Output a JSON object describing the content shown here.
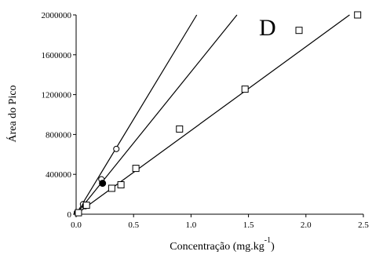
{
  "chart_data": {
    "type": "scatter",
    "title": "",
    "panel_label": "D",
    "xlabel": "Concentração (mg.kg",
    "xlabel_superscript": "-1",
    "xlabel_suffix": ")",
    "ylabel": "Área do Pico",
    "xlim": [
      0,
      2.5
    ],
    "ylim": [
      0,
      2000000
    ],
    "x_ticks": [
      "0.0",
      "0.5",
      "1.0",
      "1.5",
      "2.0",
      "2.5"
    ],
    "x_tick_values": [
      0,
      0.5,
      1.0,
      1.5,
      2.0,
      2.5
    ],
    "y_ticks": [
      "0",
      "400000",
      "800000",
      "1200000",
      "1600000",
      "2000000"
    ],
    "y_tick_values": [
      0,
      400000,
      800000,
      1200000,
      1600000,
      2000000
    ],
    "grid": false,
    "series": [
      {
        "marker": "circle-open",
        "points": [
          [
            0.02,
            15000
          ],
          [
            0.06,
            100000
          ],
          [
            0.22,
            350000
          ],
          [
            0.35,
            655000
          ]
        ],
        "fit_line": [
          [
            0,
            0
          ],
          [
            1.05,
            2000000
          ]
        ]
      },
      {
        "marker": "circle-filled",
        "points": [
          [
            0.01,
            15000
          ],
          [
            0.08,
            85000
          ],
          [
            0.23,
            310000
          ]
        ],
        "fit_line": [
          [
            0,
            0
          ],
          [
            1.4,
            2000000
          ]
        ]
      },
      {
        "marker": "square-open",
        "points": [
          [
            0.02,
            15000
          ],
          [
            0.09,
            90000
          ],
          [
            0.31,
            260000
          ],
          [
            0.39,
            295000
          ],
          [
            0.52,
            460000
          ],
          [
            0.9,
            855000
          ],
          [
            1.47,
            1255000
          ],
          [
            1.94,
            1845000
          ],
          [
            2.45,
            2000000
          ]
        ],
        "fit_line": [
          [
            0,
            0
          ],
          [
            2.38,
            2000000
          ]
        ]
      }
    ]
  }
}
